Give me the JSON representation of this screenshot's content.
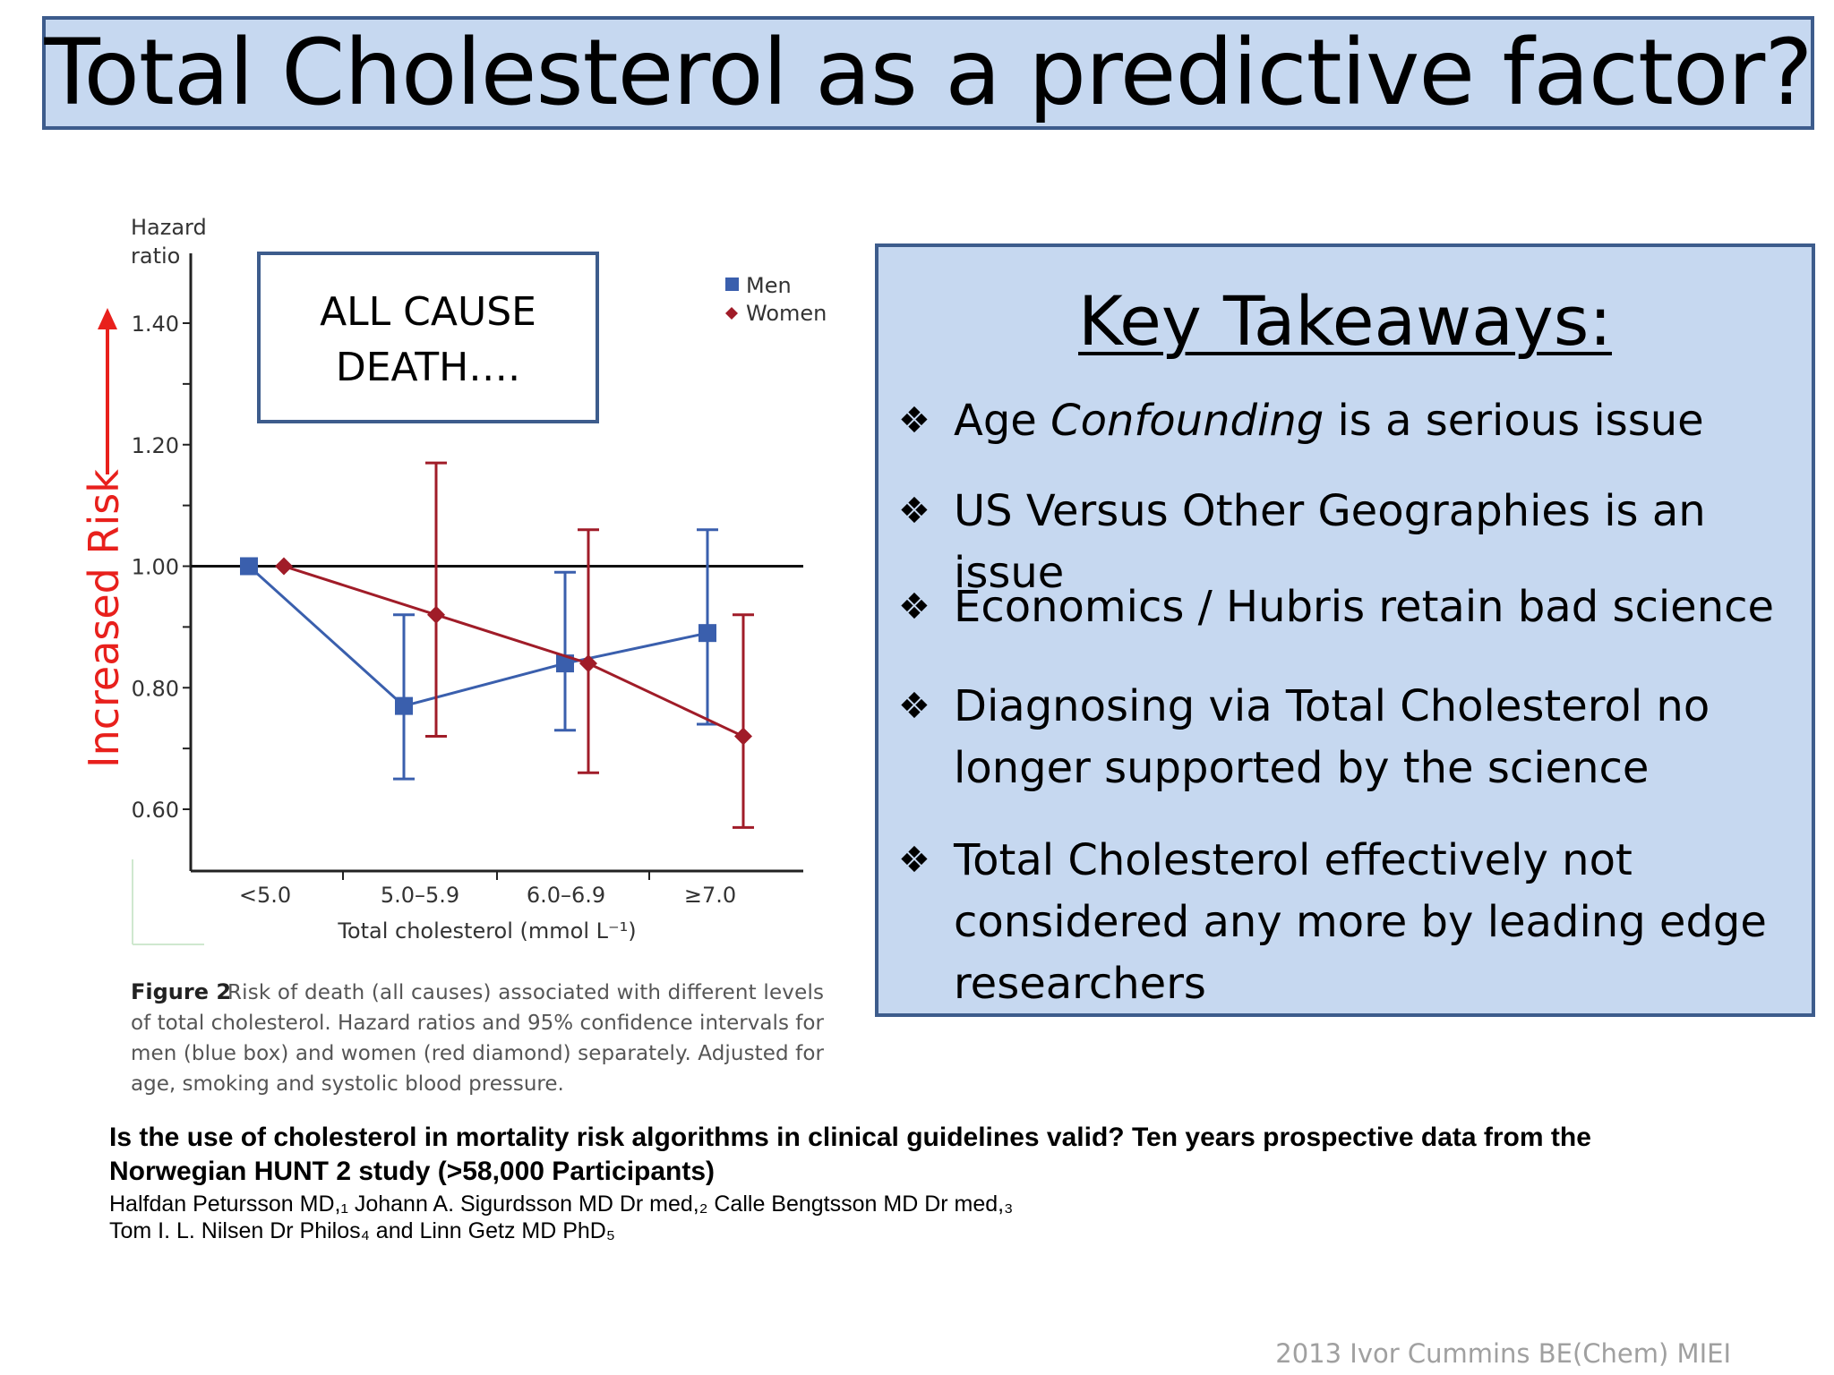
{
  "slide": {
    "title": "Total Cholesterol as a predictive factor?",
    "footer": "2013 Ivor Cummins BE(Chem) MIEI"
  },
  "colors": {
    "men": "#3a5fad",
    "women": "#a01c28",
    "panel_fill": "#c6d8f0",
    "panel_border": "#3d5c8c",
    "increased_risk": "#e8201c"
  },
  "chart_data": {
    "type": "line",
    "title": "",
    "xlabel": "Total cholesterol (mmol L⁻¹)",
    "ylabel": "Hazard ratio",
    "ylim": [
      0.6,
      1.4
    ],
    "yticks": [
      "1.40",
      "1.20",
      "1.00",
      "0.80",
      "0.60"
    ],
    "categories": [
      "<5.0",
      "5.0–5.9",
      "6.0–6.9",
      "≥7.0"
    ],
    "reference_line": 1.0,
    "legend_position": "top-right",
    "series": [
      {
        "name": "Men",
        "marker": "square",
        "values": [
          1.0,
          0.77,
          0.84,
          0.89
        ],
        "ci_low": [
          1.0,
          0.65,
          0.73,
          0.74
        ],
        "ci_high": [
          1.0,
          0.92,
          0.99,
          1.06
        ]
      },
      {
        "name": "Women",
        "marker": "diamond",
        "values": [
          1.0,
          0.92,
          0.84,
          0.72
        ],
        "ci_low": [
          1.0,
          0.72,
          0.66,
          0.57
        ],
        "ci_high": [
          1.0,
          1.17,
          1.06,
          0.92
        ]
      }
    ],
    "annotation_box": [
      "ALL CAUSE",
      "DEATH…."
    ],
    "increased_risk_label": "Increased Risk",
    "caption": {
      "label": "Figure 2",
      "lines": [
        "Risk of death (all causes) associated with different levels",
        "of total cholesterol. Hazard ratios and 95% confidence intervals for",
        "men (blue box) and women (red diamond) separately. Adjusted for",
        "age, smoking and systolic blood pressure."
      ]
    }
  },
  "takeaways": {
    "heading": "Key Takeaways:",
    "bullet_icon": "four-diamond-bullet-icon",
    "items": [
      {
        "lines": [
          "Age ",
          "Confounding",
          " is a serious issue"
        ]
      },
      {
        "lines": [
          "US Versus Other Geographies is an issue"
        ]
      },
      {
        "lines": [
          "Economics / Hubris retain bad science"
        ]
      },
      {
        "lines": [
          "Diagnosing via Total Cholesterol no",
          "longer supported by the science"
        ]
      },
      {
        "lines": [
          "Total Cholesterol effectively not",
          "considered any more by leading edge",
          "researchers"
        ]
      }
    ]
  },
  "citation": {
    "title_line1": "Is the use of cholesterol in mortality risk algorithms in clinical guidelines valid? Ten years prospective data from the",
    "title_line2": "Norwegian HUNT 2 study (>58,000 Participants)",
    "authors_line1": "Halfdan Petursson MD,₁ Johann A. Sigurdsson MD Dr med,₂ Calle Bengtsson MD Dr med,₃",
    "authors_line2": "Tom I. L. Nilsen Dr Philos₄ and Linn Getz MD PhD₅"
  }
}
